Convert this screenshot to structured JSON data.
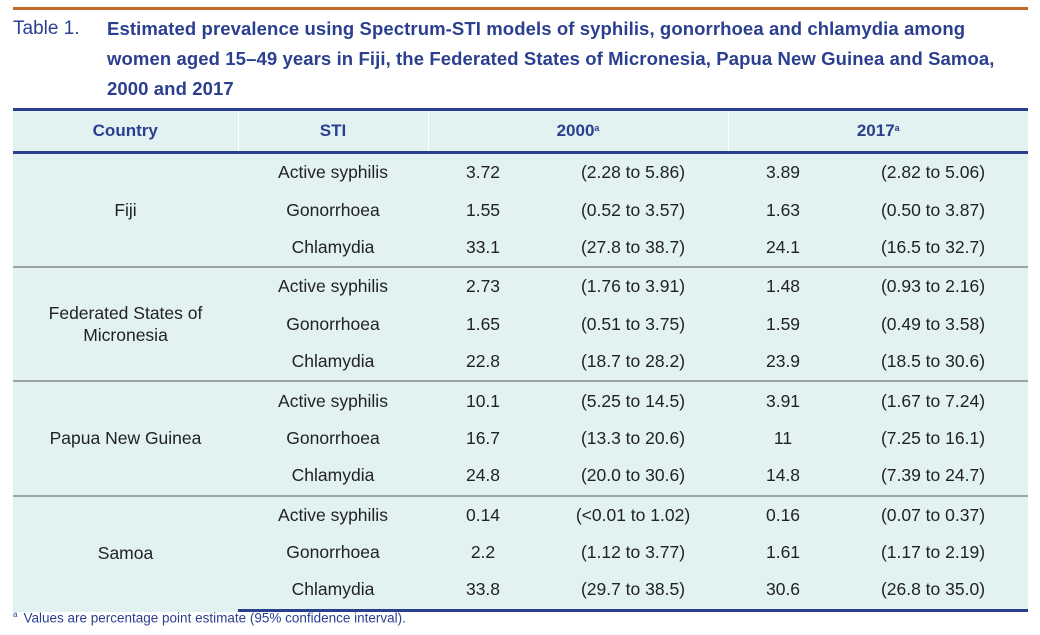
{
  "caption": {
    "label": "Table 1.",
    "title": "Estimated prevalence using Spectrum-STI models of syphilis, gonorrhoea and chlamydia among women aged 15–49 years in Fiji, the Federated States of Micronesia, Papua New Guinea and Samoa, 2000 and 2017"
  },
  "colors": {
    "accent_line": "#c06a2b",
    "title": "#2b3f8f",
    "table_bg": "#e1f2f1"
  },
  "table": {
    "headers": {
      "country": "Country",
      "sti": "STI",
      "y2000": "2000",
      "y2017": "2017",
      "superscript": "a"
    },
    "groups": [
      {
        "country": "Fiji",
        "rows": [
          {
            "sti": "Active syphilis",
            "v2000": "3.72",
            "ci2000": "(2.28 to 5.86)",
            "v2017": "3.89",
            "ci2017": "(2.82 to 5.06)"
          },
          {
            "sti": "Gonorrhoea",
            "v2000": "1.55",
            "ci2000": "(0.52 to 3.57)",
            "v2017": "1.63",
            "ci2017": "(0.50 to 3.87)"
          },
          {
            "sti": "Chlamydia",
            "v2000": "33.1",
            "ci2000": "(27.8 to 38.7)",
            "v2017": "24.1",
            "ci2017": "(16.5 to 32.7)"
          }
        ]
      },
      {
        "country": "Federated States of Micronesia",
        "rows": [
          {
            "sti": "Active syphilis",
            "v2000": "2.73",
            "ci2000": "(1.76 to 3.91)",
            "v2017": "1.48",
            "ci2017": "(0.93 to 2.16)"
          },
          {
            "sti": "Gonorrhoea",
            "v2000": "1.65",
            "ci2000": "(0.51 to 3.75)",
            "v2017": "1.59",
            "ci2017": "(0.49 to 3.58)"
          },
          {
            "sti": "Chlamydia",
            "v2000": "22.8",
            "ci2000": "(18.7 to 28.2)",
            "v2017": "23.9",
            "ci2017": "(18.5 to 30.6)"
          }
        ]
      },
      {
        "country": "Papua New Guinea",
        "rows": [
          {
            "sti": "Active syphilis",
            "v2000": "10.1",
            "ci2000": "(5.25 to 14.5)",
            "v2017": "3.91",
            "ci2017": "(1.67 to 7.24)"
          },
          {
            "sti": "Gonorrhoea",
            "v2000": "16.7",
            "ci2000": "(13.3 to 20.6)",
            "v2017": "11",
            "ci2017": "(7.25 to 16.1)"
          },
          {
            "sti": "Chlamydia",
            "v2000": "24.8",
            "ci2000": "(20.0 to 30.6)",
            "v2017": "14.8",
            "ci2017": "(7.39 to 24.7)"
          }
        ]
      },
      {
        "country": "Samoa",
        "rows": [
          {
            "sti": "Active syphilis",
            "v2000": "0.14",
            "ci2000": "(<0.01 to 1.02)",
            "v2017": "0.16",
            "ci2017": "(0.07 to 0.37)"
          },
          {
            "sti": "Gonorrhoea",
            "v2000": "2.2",
            "ci2000": "(1.12 to 3.77)",
            "v2017": "1.61",
            "ci2017": "(1.17 to 2.19)"
          },
          {
            "sti": "Chlamydia",
            "v2000": "33.8",
            "ci2000": "(29.7 to 38.5)",
            "v2017": "30.6",
            "ci2017": "(26.8 to 35.0)"
          }
        ]
      }
    ]
  },
  "footnote": {
    "marker": "a",
    "text": "Values are percentage point estimate (95% confidence interval)."
  }
}
